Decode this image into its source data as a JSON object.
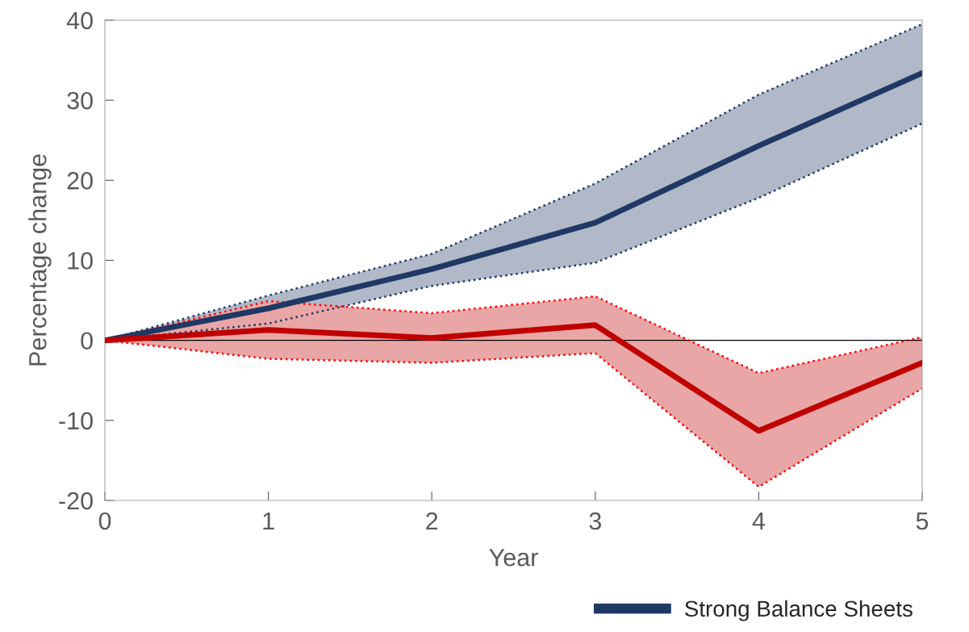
{
  "chart_data": {
    "type": "line",
    "xlabel": "Year",
    "ylabel": "Percentage change",
    "x": [
      0,
      1,
      2,
      3,
      4,
      5
    ],
    "series": [
      {
        "name": "Strong Balance Sheets",
        "color": "#203864",
        "values": [
          0,
          4.0,
          8.9,
          14.7,
          24.3,
          33.4
        ],
        "lower": [
          0,
          2.1,
          6.8,
          9.7,
          17.8,
          27.1
        ],
        "upper": [
          0,
          5.6,
          10.8,
          19.6,
          30.7,
          39.5
        ]
      },
      {
        "color": "#c00000",
        "values": [
          0,
          1.3,
          0.3,
          1.9,
          -11.3,
          -2.8
        ],
        "lower": [
          0,
          -2.3,
          -2.8,
          -1.6,
          -18.3,
          -6.0
        ],
        "upper": [
          0,
          4.9,
          3.4,
          5.5,
          -4.1,
          0.4
        ]
      },
      {
        "color": "#203864",
        "line_style": "dotted",
        "values": [
          0,
          2.1,
          6.8,
          9.7,
          17.8,
          27.1
        ]
      },
      {
        "color": "#203864",
        "line_style": "dotted",
        "values": [
          0,
          5.6,
          10.8,
          19.6,
          30.7,
          39.5
        ]
      },
      {
        "color": "#ff0000",
        "line_style": "dotted",
        "values": [
          0,
          -2.3,
          -2.8,
          -1.6,
          -18.3,
          -6.0
        ]
      },
      {
        "color": "#ff0000",
        "line_style": "dotted",
        "values": [
          0,
          4.9,
          3.4,
          5.5,
          -4.1,
          0.4
        ]
      }
    ],
    "xlim": [
      0,
      5
    ],
    "xticks": [
      0,
      1,
      2,
      3,
      4,
      5
    ],
    "ylim": [
      -20,
      40
    ],
    "yticks": [
      -20,
      -10,
      0,
      10,
      20,
      30,
      40
    ],
    "ref_lines": [
      {
        "axis": "y",
        "value": 0,
        "color": "#000000"
      }
    ],
    "grid": false,
    "legend": "bottom right",
    "line_style": "solid",
    "marker": "none"
  }
}
